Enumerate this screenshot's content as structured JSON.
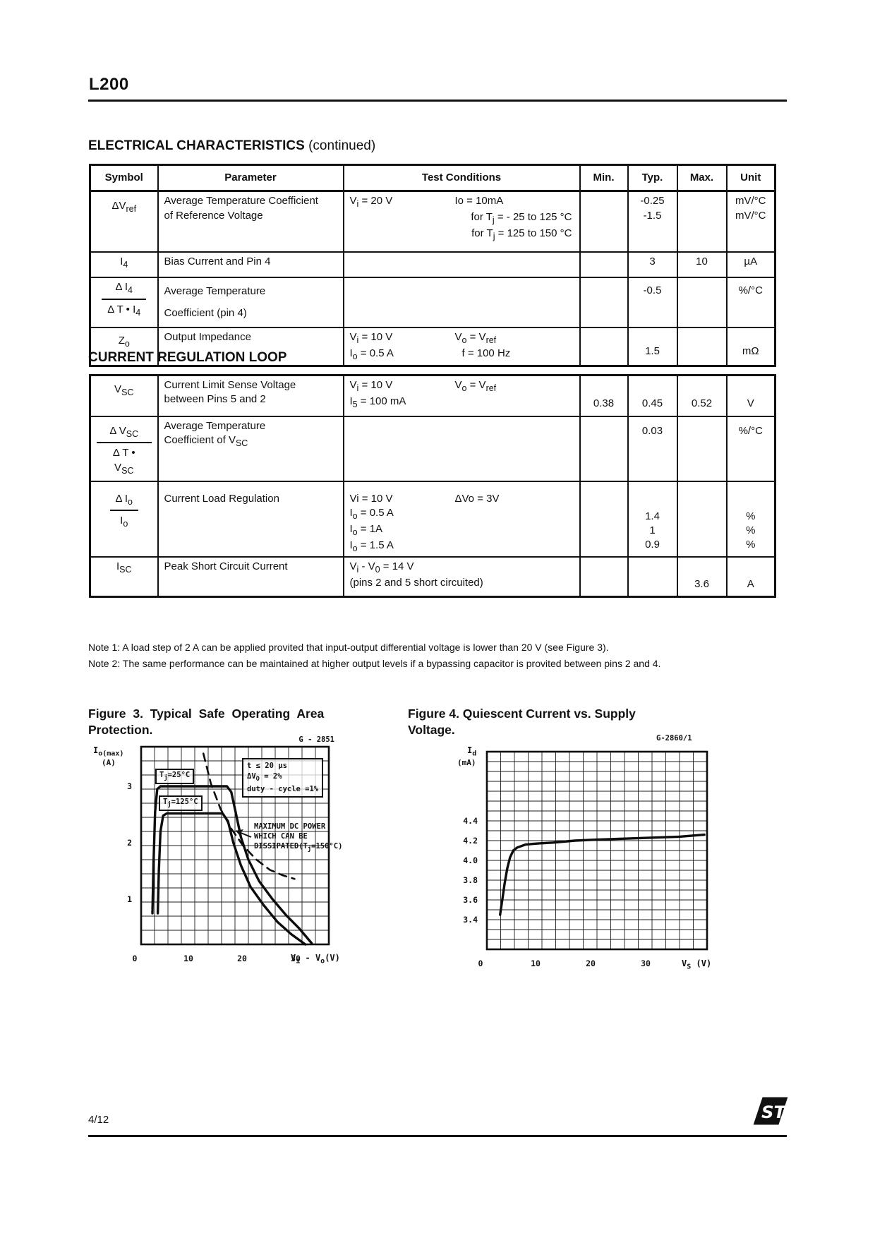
{
  "page": {
    "product": "L200",
    "page_number": "4/12",
    "logo_text": "ST"
  },
  "headings": {
    "ec_bold": "ELECTRICAL CHARACTERISTICS",
    "ec_suffix": " (continued)",
    "crl": "CURRENT REGULATION LOOP"
  },
  "table1": {
    "headers": [
      "Symbol",
      "Parameter",
      "Test Conditions",
      "Min.",
      "Typ.",
      "Max.",
      "Unit"
    ],
    "rows": [
      {
        "symbol": "ΔV<sub>ref</sub>",
        "parameter": "Average Temperature Coefficient\nof Reference Voltage",
        "cond1a": "V<sub>i</sub> = 20 V",
        "cond1b": "Io = 10mA",
        "cond2": "for T<sub>j</sub> = - 25 to 125 °C",
        "cond3": "for T<sub>j</sub> = 125 to 150 °C",
        "min": "",
        "typ": "-0.25\n-1.5",
        "max": "",
        "unit": "mV/°C\nmV/°C"
      },
      {
        "symbol": "I<sub>4</sub>",
        "parameter": "Bias Current and Pin 4",
        "min": "",
        "typ": "3",
        "max": "10",
        "unit": "µA"
      },
      {
        "sym_num": "Δ I<sub>4</sub>",
        "sym_den": "Δ T • I<sub>4</sub>",
        "parameter": "Average Temperature\nCoefficient (pin 4)",
        "min": "",
        "typ": "-0.5",
        "max": "",
        "unit": "%/°C"
      },
      {
        "symbol": "Z<sub>o</sub>",
        "parameter": "Output Impedance",
        "cond1a": "V<sub>i</sub> = 10 V",
        "cond1b": "V<sub>o</sub> = V<sub>ref</sub>",
        "cond2a": "I<sub>o</sub> = 0.5 A",
        "cond2b": "f = 100 Hz",
        "min": "",
        "typ": "1.5",
        "max": "",
        "unit": "mΩ"
      }
    ]
  },
  "table2": {
    "rows": [
      {
        "symbol": "V<sub>SC</sub>",
        "parameter": "Current Limit Sense Voltage\nbetween Pins 5 and 2",
        "cond1a": "V<sub>i</sub> = 10 V",
        "cond1b": "V<sub>o</sub> = V<sub>ref</sub>",
        "cond2": "I<sub>5</sub> = 100 mA",
        "min": "0.38",
        "typ": "0.45",
        "max": "0.52",
        "unit": "V"
      },
      {
        "sym_num": "Δ V<sub>SC</sub>",
        "sym_den": "Δ T • V<sub>SC</sub>",
        "parameter": "Average Temperature\nCoefficient of  V<sub>SC</sub>",
        "min": "",
        "typ": "0.03",
        "max": "",
        "unit": "%/°C"
      },
      {
        "sym_num": "Δ I<sub>o</sub>",
        "sym_den": "I<sub>o</sub>",
        "parameter": "Current Load Regulation",
        "cond1a": "Vi = 10 V",
        "cond1b": "ΔVo = 3V",
        "cond2": "I<sub>o</sub> = 0.5 A",
        "cond3": "I<sub>o</sub> = 1A",
        "cond4": "I<sub>o</sub> = 1.5 A",
        "min": "",
        "typ": "1.4\n1\n0.9",
        "max": "",
        "unit": "%\n%\n%"
      },
      {
        "symbol": "I<sub>SC</sub>",
        "parameter": "Peak Short Circuit Current",
        "cond1": "V<sub>i</sub> - V<sub>0</sub> = 14 V",
        "cond2": "(pins 2 and 5 short circuited)",
        "min": "",
        "typ": "",
        "max": "3.6",
        "unit": "A"
      }
    ]
  },
  "notes": [
    "Note 1: A load step of 2 A can be applied provited that input-output differential voltage is lower than 20 V (see Figure 3).",
    "Note 2: The same performance can be maintained at higher output levels if a bypassing capacitor is provited between pins 2 and 4."
  ],
  "figure3": {
    "title_l1": "Figure 3. Typical Safe Operating Area",
    "title_l2": "Protection.",
    "code": "G - 2851",
    "y_label": "I<sub>o(max)</sub>",
    "y_unit": "(A)",
    "x_label": "V<sub>i</sub> - V<sub>o</sub>(V)",
    "box1": "t ≤ 20 μs",
    "box2": "ΔV<sub>O</sub> = 2%",
    "box3": "duty - cycle =1%",
    "curve1": "T<sub>j</sub>=25°C",
    "curve2": "T<sub>j</sub>=125°C",
    "pwr1": "MAXIMUM DC POWER",
    "pwr2": "WHICH CAN BE",
    "pwr3": "DISSIPATED(T<sub>j</sub>=150°C)"
  },
  "figure4": {
    "title_l1": "Figure 4. Quiescent Current vs. Supply",
    "title_l2": "Voltage.",
    "code": "G-2860/1",
    "y_label": "I<sub>d</sub>",
    "y_unit": "(mA)",
    "x_label": "V<sub>S</sub> (V)"
  },
  "chart_data": [
    {
      "type": "line",
      "title": "Typical Safe Operating Area Protection",
      "xlabel": "Vi - Vo (V)",
      "ylabel": "Io(max) (A)",
      "xlim": [
        0,
        35
      ],
      "ylim": [
        0.2,
        3.7
      ],
      "x_ticks": [
        "0",
        "10",
        "20",
        "30"
      ],
      "y_ticks": [
        "1",
        "2",
        "3"
      ],
      "grid": {
        "x_step": 2.5,
        "y_step": 0.25
      },
      "legend_position": "inline-labels",
      "annotations": [
        "t ≤ 20 μs",
        "ΔVo = 2%",
        "duty-cycle = 1%",
        "MAXIMUM DC POWER WHICH CAN BE DISSIPATED (Tj=150°C)"
      ],
      "series": [
        {
          "name": "Tj=25°C",
          "style": "solid",
          "points": [
            [
              2.1,
              0.75
            ],
            [
              2.3,
              1.6
            ],
            [
              2.6,
              2.55
            ],
            [
              3.0,
              2.95
            ],
            [
              3.6,
              3.0
            ],
            [
              16.0,
              3.0
            ],
            [
              16.8,
              2.9
            ],
            [
              17.6,
              2.55
            ],
            [
              18.6,
              2.1
            ],
            [
              20.0,
              1.7
            ],
            [
              22.0,
              1.32
            ],
            [
              24.5,
              1.0
            ],
            [
              27.0,
              0.72
            ],
            [
              29.5,
              0.48
            ],
            [
              31.8,
              0.22
            ]
          ]
        },
        {
          "name": "Tj=125°C",
          "style": "solid",
          "points": [
            [
              3.1,
              0.75
            ],
            [
              3.3,
              1.5
            ],
            [
              3.6,
              2.2
            ],
            [
              4.1,
              2.48
            ],
            [
              4.8,
              2.52
            ],
            [
              15.2,
              2.52
            ],
            [
              16.2,
              2.38
            ],
            [
              17.2,
              2.0
            ],
            [
              18.6,
              1.6
            ],
            [
              20.4,
              1.22
            ],
            [
              22.8,
              0.9
            ],
            [
              25.4,
              0.6
            ],
            [
              28.0,
              0.38
            ],
            [
              30.6,
              0.2
            ]
          ]
        },
        {
          "name": "Maximum DC power which can be dissipated (Tj=150°C)",
          "style": "dashed",
          "points": [
            [
              11.6,
              3.58
            ],
            [
              13.0,
              3.05
            ],
            [
              14.8,
              2.6
            ],
            [
              16.8,
              2.25
            ],
            [
              19.0,
              1.95
            ],
            [
              21.5,
              1.7
            ],
            [
              24.0,
              1.52
            ],
            [
              26.5,
              1.42
            ],
            [
              28.6,
              1.36
            ]
          ]
        }
      ]
    },
    {
      "type": "line",
      "title": "Quiescent Current vs. Supply Voltage",
      "xlabel": "Vs (V)",
      "ylabel": "Id (mA)",
      "xlim": [
        0,
        40
      ],
      "ylim": [
        3.1,
        5.1
      ],
      "x_ticks": [
        "0",
        "10",
        "20",
        "30"
      ],
      "y_ticks": [
        "3.4",
        "3.6",
        "3.8",
        "4.0",
        "4.2",
        "4.4"
      ],
      "grid": {
        "x_step": 2.5,
        "y_step": 0.1
      },
      "legend_position": "none",
      "series": [
        {
          "name": "Id",
          "style": "solid",
          "points": [
            [
              2.4,
              3.45
            ],
            [
              2.8,
              3.6
            ],
            [
              3.2,
              3.76
            ],
            [
              3.7,
              3.92
            ],
            [
              4.2,
              4.03
            ],
            [
              4.8,
              4.1
            ],
            [
              5.5,
              4.13
            ],
            [
              7.0,
              4.16
            ],
            [
              9.0,
              4.17
            ],
            [
              12.0,
              4.18
            ],
            [
              16.0,
              4.2
            ],
            [
              20.0,
              4.21
            ],
            [
              25.0,
              4.22
            ],
            [
              30.0,
              4.23
            ],
            [
              35.0,
              4.24
            ],
            [
              39.5,
              4.26
            ]
          ]
        }
      ]
    }
  ]
}
